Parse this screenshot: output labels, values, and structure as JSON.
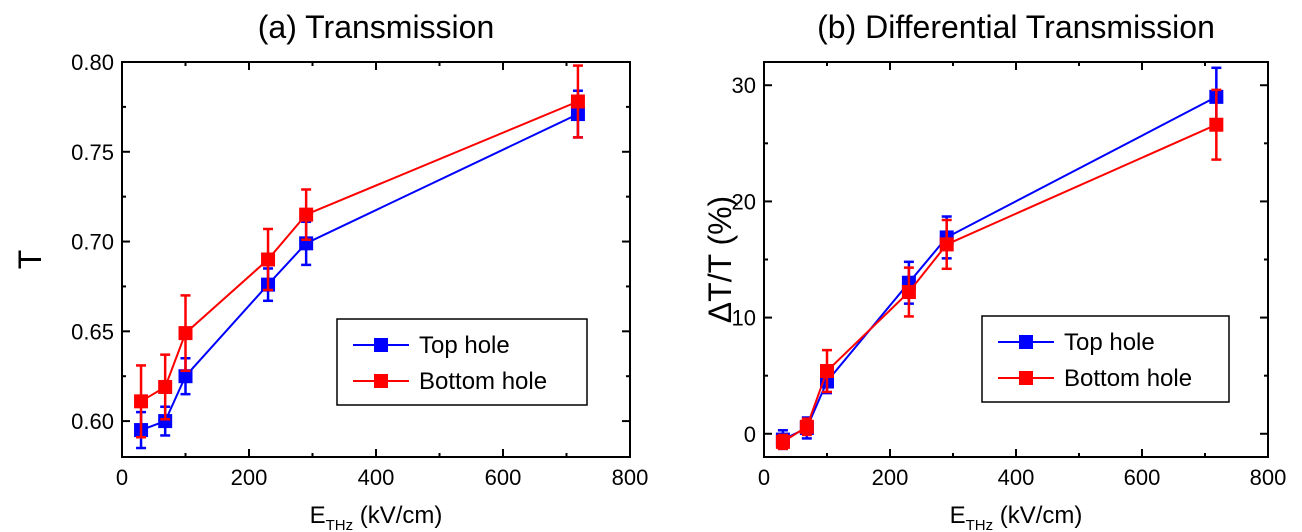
{
  "chart_data": [
    {
      "type": "line",
      "title": "(a) Transmission",
      "xlabel": {
        "main": "E",
        "sub": "THz",
        "rest": " (kV/cm)"
      },
      "ylabel": "T",
      "xlim": [
        0,
        800
      ],
      "ylim": [
        0.58,
        0.8
      ],
      "xticks": [
        0,
        200,
        400,
        600,
        800
      ],
      "xtick_labels": [
        "0",
        "200",
        "400",
        "600",
        "800"
      ],
      "yticks": [
        0.6,
        0.65,
        0.7,
        0.75,
        0.8
      ],
      "ytick_labels": [
        "0.60",
        "0.65",
        "0.70",
        "0.75",
        "0.80"
      ],
      "legend_position": "lower-right",
      "series": [
        {
          "name": "Top hole",
          "color": "#0000ff",
          "x": [
            30,
            68,
            100,
            230,
            290,
            718
          ],
          "y": [
            0.595,
            0.6,
            0.625,
            0.676,
            0.699,
            0.771
          ],
          "err": [
            0.01,
            0.008,
            0.01,
            0.009,
            0.012,
            0.013
          ]
        },
        {
          "name": "Bottom hole",
          "color": "#ff0000",
          "x": [
            30,
            68,
            100,
            230,
            290,
            718
          ],
          "y": [
            0.611,
            0.619,
            0.649,
            0.69,
            0.715,
            0.778
          ],
          "err": [
            0.02,
            0.018,
            0.021,
            0.017,
            0.014,
            0.02
          ]
        }
      ]
    },
    {
      "type": "line",
      "title": "(b) Differential Transmission",
      "xlabel": {
        "main": "E",
        "sub": "THz",
        "rest": " (kV/cm)"
      },
      "ylabel": "ΔT/T (%)",
      "xlim": [
        0,
        800
      ],
      "ylim": [
        -2,
        32
      ],
      "xticks": [
        0,
        200,
        400,
        600,
        800
      ],
      "xtick_labels": [
        "0",
        "200",
        "400",
        "600",
        "800"
      ],
      "yticks": [
        0,
        10,
        20,
        30
      ],
      "ytick_labels": [
        "0",
        "10",
        "20",
        "30"
      ],
      "legend_position": "lower-right",
      "series": [
        {
          "name": "Top hole",
          "color": "#0000ff",
          "x": [
            30,
            68,
            100,
            230,
            290,
            718
          ],
          "y": [
            -0.5,
            0.5,
            4.5,
            13.0,
            16.9,
            29.0
          ],
          "err": [
            0.8,
            0.9,
            1.0,
            1.8,
            1.8,
            2.5
          ]
        },
        {
          "name": "Bottom hole",
          "color": "#ff0000",
          "x": [
            30,
            68,
            100,
            230,
            290,
            718
          ],
          "y": [
            -0.7,
            0.6,
            5.4,
            12.2,
            16.3,
            26.6
          ],
          "err": [
            0.6,
            0.7,
            1.8,
            2.1,
            2.1,
            3.0
          ]
        }
      ]
    }
  ]
}
